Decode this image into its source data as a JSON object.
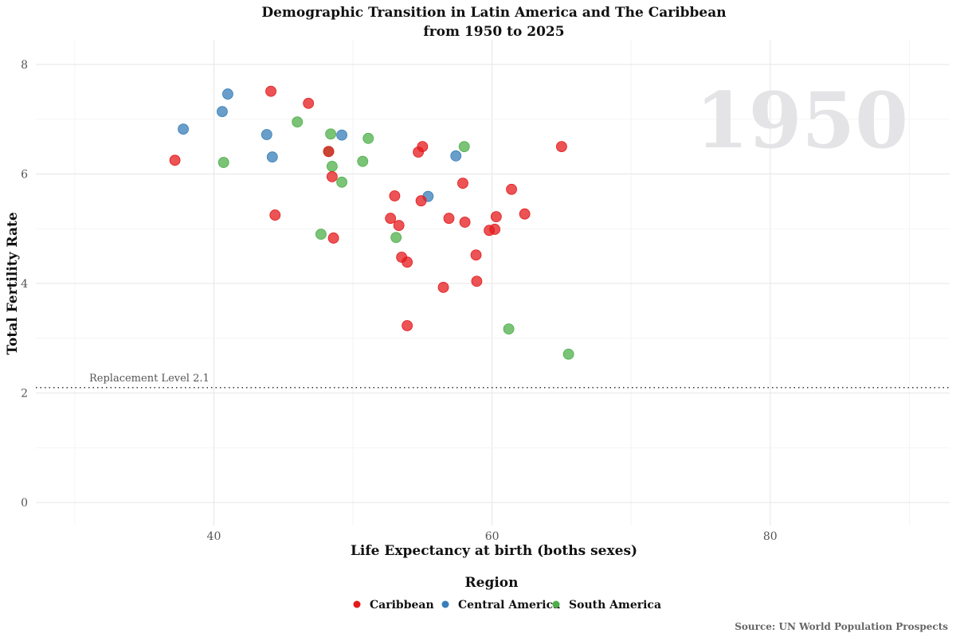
{
  "chart_data": {
    "type": "scatter",
    "title": "Demographic Transition in Latin America and The Caribbean",
    "subtitle": "from 1950 to 2025",
    "xlabel": "Life Expectancy at birth (boths sexes)",
    "ylabel": "Total Fertility Rate",
    "xlim": [
      27.2,
      92.9
    ],
    "ylim": [
      -0.42,
      8.45
    ],
    "x_ticks": [
      40,
      60,
      80
    ],
    "y_ticks": [
      0,
      2,
      4,
      6,
      8
    ],
    "grid": true,
    "year_label": "1950",
    "reference_line": {
      "y": 2.1,
      "label": "Replacement Level 2.1",
      "style": "dotted"
    },
    "legend": {
      "title": "Region",
      "placement": "bottom"
    },
    "caption": "Source: UN World Population Prospects",
    "series": [
      {
        "name": "Caribbean",
        "color": "#E41A1C",
        "points": [
          [
            37.2,
            6.25
          ],
          [
            44.1,
            7.51
          ],
          [
            46.8,
            7.29
          ],
          [
            44.4,
            5.25
          ],
          [
            48.25,
            6.41
          ],
          [
            48.5,
            5.95
          ],
          [
            48.6,
            4.83
          ],
          [
            53.0,
            5.6
          ],
          [
            52.7,
            5.19
          ],
          [
            53.3,
            5.06
          ],
          [
            53.5,
            4.48
          ],
          [
            53.9,
            4.39
          ],
          [
            53.9,
            3.23
          ],
          [
            54.7,
            6.4
          ],
          [
            55.0,
            6.5
          ],
          [
            54.9,
            5.51
          ],
          [
            56.5,
            3.93
          ],
          [
            56.9,
            5.19
          ],
          [
            57.9,
            5.83
          ],
          [
            58.05,
            5.12
          ],
          [
            58.85,
            4.52
          ],
          [
            58.9,
            4.04
          ],
          [
            59.8,
            4.97
          ],
          [
            60.2,
            4.99
          ],
          [
            60.3,
            5.22
          ],
          [
            61.4,
            5.72
          ],
          [
            62.35,
            5.27
          ],
          [
            65.0,
            6.5
          ]
        ]
      },
      {
        "name": "Central America",
        "color": "#377EB8",
        "points": [
          [
            37.8,
            6.82
          ],
          [
            41.0,
            7.46
          ],
          [
            40.6,
            7.14
          ],
          [
            43.8,
            6.72
          ],
          [
            44.2,
            6.31
          ],
          [
            49.2,
            6.71
          ],
          [
            55.4,
            5.59
          ],
          [
            57.4,
            6.33
          ]
        ]
      },
      {
        "name": "South America",
        "color": "#4DAF4A",
        "points": [
          [
            40.7,
            6.21
          ],
          [
            46.0,
            6.95
          ],
          [
            48.4,
            6.73
          ],
          [
            48.5,
            6.14
          ],
          [
            49.2,
            5.85
          ],
          [
            47.7,
            4.9
          ],
          [
            51.1,
            6.65
          ],
          [
            50.7,
            6.23
          ],
          [
            53.1,
            4.84
          ],
          [
            58.0,
            6.5
          ],
          [
            61.2,
            3.17
          ],
          [
            65.5,
            2.71
          ],
          [
            48.25,
            6.41
          ]
        ]
      }
    ]
  }
}
